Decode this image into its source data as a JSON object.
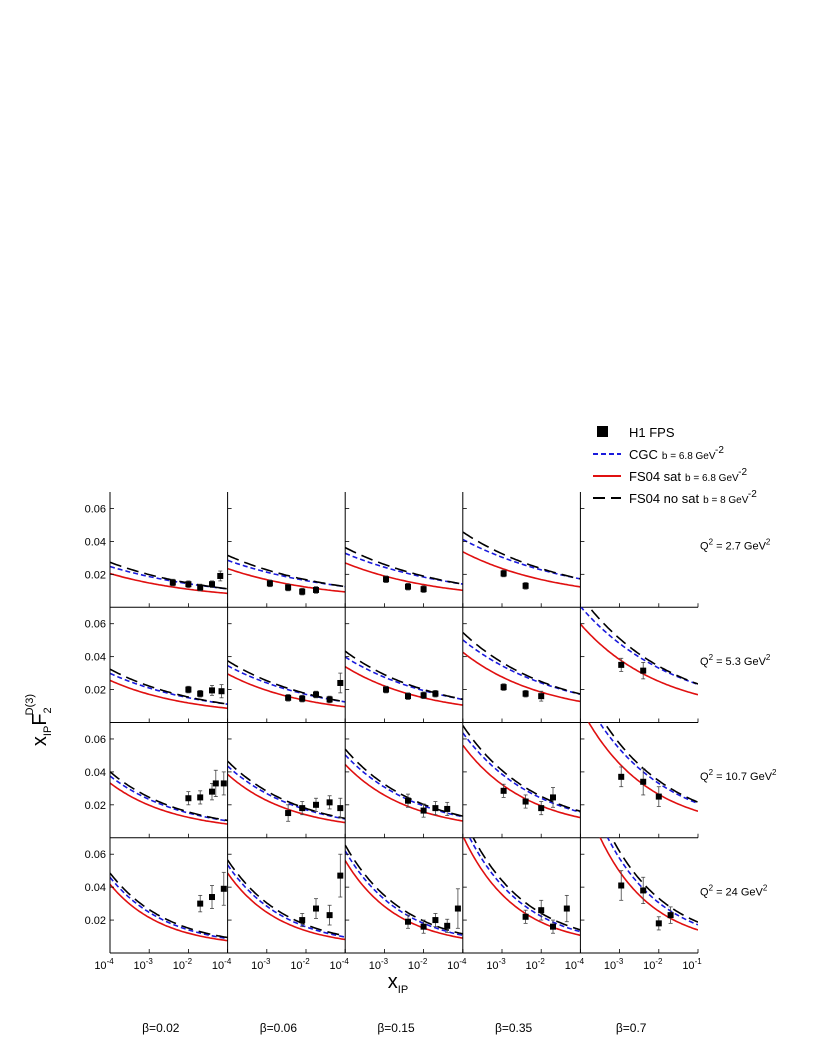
{
  "chart_data": {
    "type": "scatter",
    "panel_grid": {
      "rows": 4,
      "cols": 5
    },
    "xlabel": "x_IP",
    "ylabel": "x_IP F_2^D(3)",
    "x_scale": "log",
    "xlim": [
      0.0001,
      0.1
    ],
    "ylim": [
      0.0,
      0.07
    ],
    "y_ticks": [
      0.02,
      0.04,
      0.06
    ],
    "y_tick_labels": [
      "0.02",
      "0.04",
      "0.06"
    ],
    "x_tick_labels": [
      [
        "10",
        "-4"
      ],
      [
        "10",
        "-3"
      ],
      [
        "10",
        "-2"
      ],
      [
        "10",
        "-1"
      ]
    ],
    "beta_labels": [
      "β=0.02",
      "β=0.06",
      "β=0.15",
      "β=0.35",
      "β=0.7"
    ],
    "q2_labels": [
      {
        "main": "Q",
        "sup": "2",
        "rest": " = 2.7 GeV",
        "sup2": "2"
      },
      {
        "main": "Q",
        "sup": "2",
        "rest": " = 5.3 GeV",
        "sup2": "2"
      },
      {
        "main": "Q",
        "sup": "2",
        "rest": " = 10.7 GeV",
        "sup2": "2"
      },
      {
        "main": "Q",
        "sup": "2",
        "rest": " = 24 GeV",
        "sup2": "2"
      }
    ],
    "legend": [
      {
        "label": "H1 FPS",
        "extra": "",
        "sup": "",
        "style": "marker",
        "color": "#000000"
      },
      {
        "label": "CGC",
        "extra": "b = 6.8 GeV",
        "sup": "-2",
        "style": "dashed",
        "color": "#1a1adc"
      },
      {
        "label": "FS04 sat",
        "extra": "b = 6.8 GeV",
        "sup": "-2",
        "style": "solid",
        "color": "#e01010"
      },
      {
        "label": "FS04 no sat",
        "extra": "b = 8 GeV",
        "sup": "-2",
        "style": "longdash",
        "color": "#000000"
      }
    ],
    "curve_params": {
      "rows": [
        {
          "cgc": [
            0.025,
            0.0185
          ],
          "fs": [
            0.02,
            0.0225
          ],
          "ns": [
            0.028,
            0.0205
          ]
        },
        {
          "cgc": [
            0.031,
            0.0225
          ],
          "fs": [
            0.026,
            0.0265
          ],
          "ns": [
            0.034,
            0.024
          ]
        },
        {
          "cgc": [
            0.04,
            0.0295
          ],
          "fs": [
            0.035,
            0.033
          ],
          "ns": [
            0.043,
            0.03
          ]
        },
        {
          "cgc": [
            0.05,
            0.038
          ],
          "fs": [
            0.045,
            0.041
          ],
          "ns": [
            0.053,
            0.037
          ]
        }
      ],
      "col_factor": [
        0.85,
        1.0,
        1.17,
        1.5,
        2.15
      ],
      "col_ymin_offset": [
        1.0,
        1.0,
        1.0,
        1.05,
        1.1
      ]
    },
    "panels": [
      {
        "row": 0,
        "col": 0,
        "points": [
          [
            0.004,
            0.015,
            0.002
          ],
          [
            0.01,
            0.014,
            0.002
          ],
          [
            0.02,
            0.012,
            0.002
          ],
          [
            0.04,
            0.014,
            0.002
          ],
          [
            0.065,
            0.019,
            0.003
          ]
        ]
      },
      {
        "row": 0,
        "col": 1,
        "points": [
          [
            0.0012,
            0.0145,
            0.002
          ],
          [
            0.0035,
            0.012,
            0.002
          ],
          [
            0.008,
            0.0095,
            0.002
          ],
          [
            0.018,
            0.0105,
            0.002
          ]
        ]
      },
      {
        "row": 0,
        "col": 2,
        "points": [
          [
            0.0011,
            0.017,
            0.002
          ],
          [
            0.004,
            0.0125,
            0.002
          ],
          [
            0.01,
            0.011,
            0.002
          ]
        ]
      },
      {
        "row": 0,
        "col": 3,
        "points": [
          [
            0.0011,
            0.0205,
            0.002
          ],
          [
            0.004,
            0.013,
            0.002
          ]
        ]
      },
      {
        "row": 0,
        "col": 4,
        "points": []
      },
      {
        "row": 1,
        "col": 0,
        "points": [
          [
            0.01,
            0.02,
            0.002
          ],
          [
            0.02,
            0.0175,
            0.002
          ],
          [
            0.04,
            0.0195,
            0.003
          ],
          [
            0.07,
            0.019,
            0.004
          ]
        ]
      },
      {
        "row": 1,
        "col": 1,
        "points": [
          [
            0.0035,
            0.015,
            0.002
          ],
          [
            0.008,
            0.0145,
            0.002
          ],
          [
            0.018,
            0.017,
            0.002
          ],
          [
            0.04,
            0.014,
            0.002
          ],
          [
            0.075,
            0.024,
            0.006
          ]
        ]
      },
      {
        "row": 1,
        "col": 2,
        "points": [
          [
            0.0011,
            0.02,
            0.002
          ],
          [
            0.004,
            0.016,
            0.002
          ],
          [
            0.01,
            0.0165,
            0.002
          ],
          [
            0.02,
            0.0175,
            0.002
          ]
        ]
      },
      {
        "row": 1,
        "col": 3,
        "points": [
          [
            0.0011,
            0.0215,
            0.002
          ],
          [
            0.004,
            0.0175,
            0.002
          ],
          [
            0.01,
            0.016,
            0.003
          ]
        ]
      },
      {
        "row": 1,
        "col": 4,
        "points": [
          [
            0.0011,
            0.035,
            0.004
          ],
          [
            0.004,
            0.0315,
            0.005
          ]
        ]
      },
      {
        "row": 2,
        "col": 0,
        "points": [
          [
            0.01,
            0.024,
            0.004
          ],
          [
            0.02,
            0.0245,
            0.004
          ],
          [
            0.04,
            0.028,
            0.005
          ],
          [
            0.05,
            0.033,
            0.008
          ],
          [
            0.08,
            0.033,
            0.007
          ]
        ]
      },
      {
        "row": 2,
        "col": 1,
        "points": [
          [
            0.0035,
            0.015,
            0.005
          ],
          [
            0.008,
            0.018,
            0.004
          ],
          [
            0.018,
            0.02,
            0.004
          ],
          [
            0.04,
            0.0215,
            0.004
          ],
          [
            0.075,
            0.018,
            0.006
          ]
        ]
      },
      {
        "row": 2,
        "col": 2,
        "points": [
          [
            0.004,
            0.0225,
            0.004
          ],
          [
            0.01,
            0.0165,
            0.004
          ],
          [
            0.02,
            0.018,
            0.004
          ],
          [
            0.04,
            0.0175,
            0.004
          ]
        ]
      },
      {
        "row": 2,
        "col": 3,
        "points": [
          [
            0.0011,
            0.0285,
            0.004
          ],
          [
            0.004,
            0.022,
            0.004
          ],
          [
            0.01,
            0.018,
            0.004
          ],
          [
            0.02,
            0.0245,
            0.006
          ]
        ]
      },
      {
        "row": 2,
        "col": 4,
        "points": [
          [
            0.0011,
            0.037,
            0.006
          ],
          [
            0.004,
            0.034,
            0.008
          ],
          [
            0.01,
            0.025,
            0.006
          ]
        ]
      },
      {
        "row": 3,
        "col": 0,
        "points": [
          [
            0.02,
            0.03,
            0.005
          ],
          [
            0.04,
            0.034,
            0.007
          ],
          [
            0.08,
            0.039,
            0.01
          ]
        ]
      },
      {
        "row": 3,
        "col": 1,
        "points": [
          [
            0.008,
            0.02,
            0.004
          ],
          [
            0.018,
            0.027,
            0.006
          ],
          [
            0.04,
            0.023,
            0.006
          ],
          [
            0.075,
            0.047,
            0.013
          ]
        ]
      },
      {
        "row": 3,
        "col": 2,
        "points": [
          [
            0.004,
            0.019,
            0.004
          ],
          [
            0.01,
            0.016,
            0.004
          ],
          [
            0.02,
            0.02,
            0.004
          ],
          [
            0.04,
            0.0165,
            0.004
          ],
          [
            0.075,
            0.027,
            0.012
          ]
        ]
      },
      {
        "row": 3,
        "col": 3,
        "points": [
          [
            0.004,
            0.022,
            0.004
          ],
          [
            0.01,
            0.026,
            0.006
          ],
          [
            0.02,
            0.016,
            0.004
          ],
          [
            0.045,
            0.027,
            0.008
          ]
        ]
      },
      {
        "row": 3,
        "col": 4,
        "points": [
          [
            0.0011,
            0.041,
            0.009
          ],
          [
            0.004,
            0.038,
            0.008
          ],
          [
            0.01,
            0.018,
            0.004
          ],
          [
            0.02,
            0.023,
            0.005
          ]
        ]
      }
    ]
  }
}
